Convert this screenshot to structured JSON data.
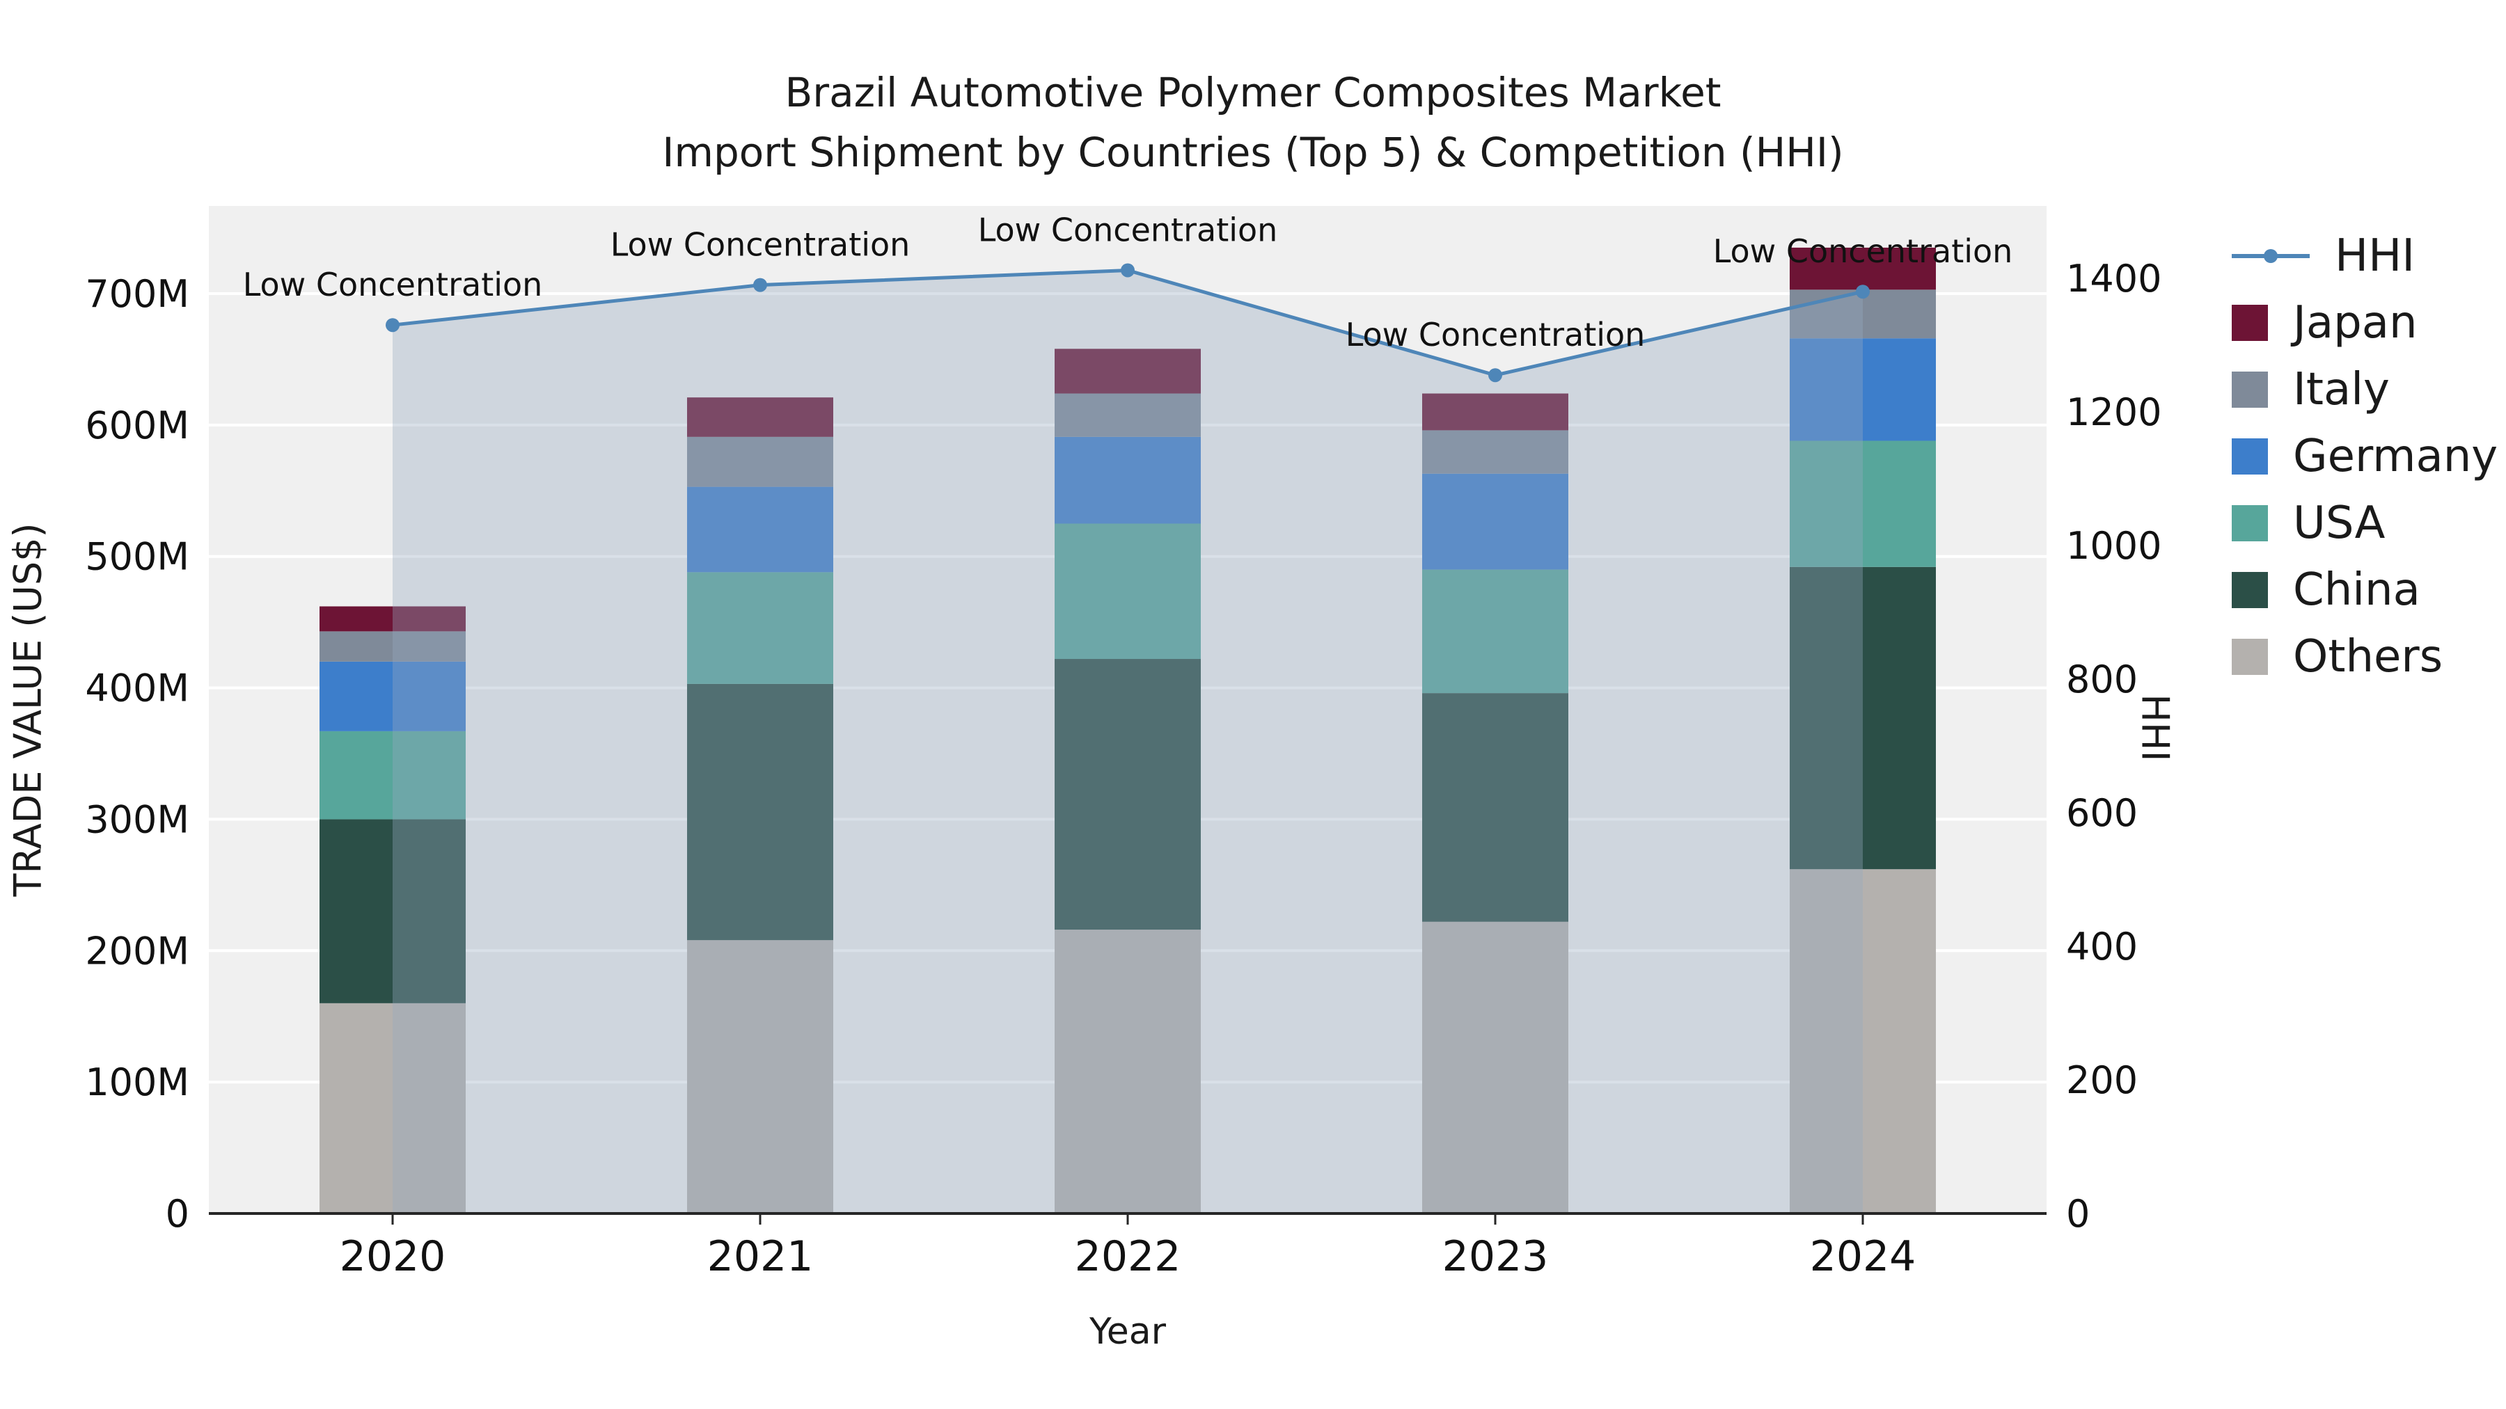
{
  "title": {
    "line1": "Brazil Automotive Polymer Composites Market",
    "line2": "Import Shipment by Countries (Top 5) & Competition (HHI)"
  },
  "axes": {
    "y_left": {
      "label": "TRADE VALUE (US$)",
      "ticks": [
        "0",
        "100M",
        "200M",
        "300M",
        "400M",
        "500M",
        "600M",
        "700M"
      ],
      "tick_values": [
        0,
        100,
        200,
        300,
        400,
        500,
        600,
        700
      ]
    },
    "y_right": {
      "label": "HHI",
      "ticks": [
        "0",
        "200",
        "400",
        "600",
        "800",
        "1000",
        "1200",
        "1400"
      ],
      "tick_values": [
        0,
        200,
        400,
        600,
        800,
        1000,
        1200,
        1400
      ]
    },
    "x": {
      "label": "Year",
      "ticks": [
        "2020",
        "2021",
        "2022",
        "2023",
        "2024"
      ]
    }
  },
  "colors": {
    "plot_background": "#f0f0f0",
    "gridline": "#ffffff",
    "axis_line": "#262626",
    "text": "#111111",
    "annotation_text": "#111111"
  },
  "chart_data": {
    "type": "bar",
    "subtype": "stacked-bar-with-line-overlay",
    "title": "Brazil Automotive Polymer Composites Market — Import Shipment by Countries (Top 5) & Competition (HHI)",
    "xlabel": "Year",
    "ylabel_left": "TRADE VALUE (US$)",
    "ylabel_right": "HHI",
    "y_left_unit": "M US$",
    "y_left_lim": [
      0,
      766
    ],
    "y_right_lim": [
      0,
      1400
    ],
    "categories": [
      "2020",
      "2021",
      "2022",
      "2023",
      "2024"
    ],
    "stacked_series": [
      {
        "name": "Others",
        "color": "#b4b1ae",
        "values": [
          160,
          208,
          216,
          222,
          262
        ]
      },
      {
        "name": "China",
        "color": "#2b4f47",
        "values": [
          140,
          195,
          206,
          174,
          230
        ]
      },
      {
        "name": "USA",
        "color": "#57a69b",
        "values": [
          67,
          85,
          103,
          94,
          96
        ]
      },
      {
        "name": "Germany",
        "color": "#3d7ecb",
        "values": [
          53,
          65,
          66,
          73,
          78
        ]
      },
      {
        "name": "Italy",
        "color": "#7f8a99",
        "values": [
          23,
          38,
          33,
          33,
          37
        ]
      },
      {
        "name": "Japan",
        "color": "#6d1435",
        "values": [
          19,
          30,
          34,
          28,
          32
        ]
      }
    ],
    "bar_totals": [
      462,
      621,
      658,
      624,
      735
    ],
    "line_series": {
      "name": "HHI",
      "axis": "right",
      "color": "#4e86b8",
      "area_fill": "rgba(150,168,190,0.36)",
      "values": [
        1330,
        1390,
        1412,
        1255,
        1380
      ]
    },
    "annotations": [
      "Low Concentration",
      "Low Concentration",
      "Low Concentration",
      "Low Concentration",
      "Low Concentration"
    ]
  },
  "legend": {
    "items": [
      {
        "label": "HHI",
        "type": "line",
        "color": "#4e86b8"
      },
      {
        "label": "Japan",
        "type": "square",
        "color": "#6d1435"
      },
      {
        "label": "Italy",
        "type": "square",
        "color": "#7f8a99"
      },
      {
        "label": "Germany",
        "type": "square",
        "color": "#3d7ecb"
      },
      {
        "label": "USA",
        "type": "square",
        "color": "#57a69b"
      },
      {
        "label": "China",
        "type": "square",
        "color": "#2b4f47"
      },
      {
        "label": "Others",
        "type": "square",
        "color": "#b4b1ae"
      }
    ]
  }
}
